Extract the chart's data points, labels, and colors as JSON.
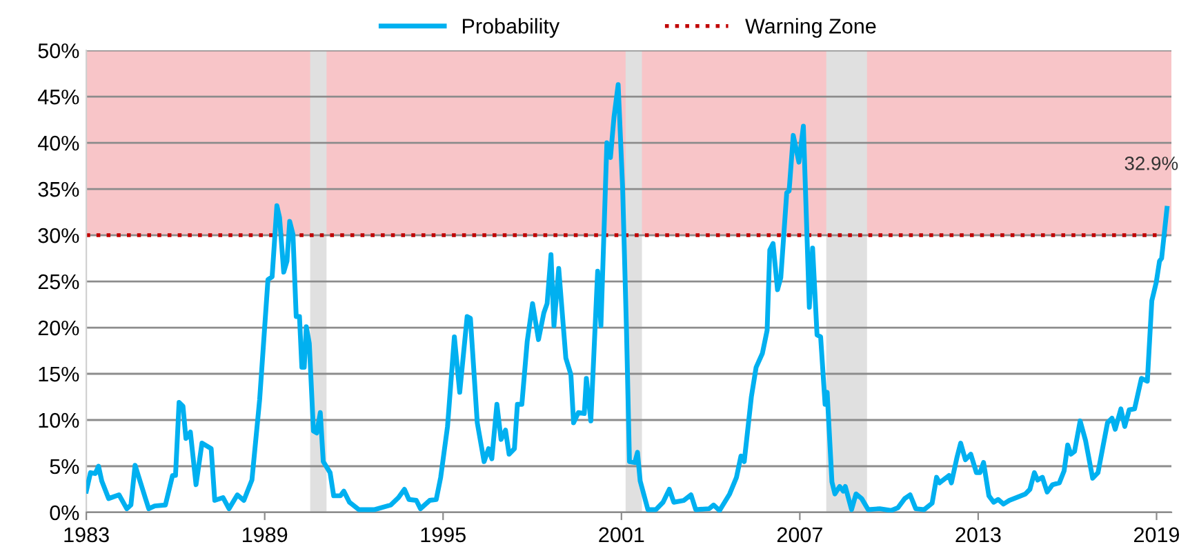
{
  "chart_data": {
    "type": "line",
    "x": [
      1983.0,
      1983.14,
      1983.3,
      1983.41,
      1983.52,
      1983.75,
      1984.1,
      1984.36,
      1984.5,
      1984.64,
      1985.0,
      1985.1,
      1985.3,
      1985.66,
      1985.9,
      1986.0,
      1986.12,
      1986.25,
      1986.35,
      1986.5,
      1986.69,
      1986.89,
      1987.2,
      1987.32,
      1987.6,
      1987.8,
      1988.08,
      1988.3,
      1988.57,
      1988.83,
      1989.11,
      1989.25,
      1989.41,
      1989.5,
      1989.64,
      1989.75,
      1989.84,
      1989.95,
      1990.06,
      1990.17,
      1990.25,
      1990.33,
      1990.4,
      1990.5,
      1990.64,
      1990.75,
      1990.87,
      1990.97,
      1991.2,
      1991.32,
      1991.55,
      1991.66,
      1991.85,
      1992.17,
      1992.7,
      1993.24,
      1993.5,
      1993.7,
      1993.85,
      1994.1,
      1994.24,
      1994.55,
      1994.77,
      1994.92,
      1995.15,
      1995.38,
      1995.56,
      1995.81,
      1995.92,
      1996.15,
      1996.38,
      1996.53,
      1996.64,
      1996.81,
      1996.95,
      1997.1,
      1997.22,
      1997.4,
      1997.5,
      1997.65,
      1997.83,
      1998.01,
      1998.21,
      1998.39,
      1998.5,
      1998.63,
      1998.73,
      1998.89,
      1999.13,
      1999.3,
      1999.39,
      1999.55,
      1999.75,
      1999.82,
      1999.97,
      2000.2,
      2000.31,
      2000.51,
      2000.63,
      2000.75,
      2000.89,
      2001.04,
      2001.17,
      2001.27,
      2001.45,
      2001.54,
      2001.63,
      2001.89,
      2002.16,
      2002.4,
      2002.61,
      2002.76,
      2003.1,
      2003.34,
      2003.5,
      2003.95,
      2004.1,
      2004.3,
      2004.64,
      2004.87,
      2005.02,
      2005.13,
      2005.37,
      2005.53,
      2005.74,
      2005.9,
      2005.99,
      2006.1,
      2006.25,
      2006.36,
      2006.56,
      2006.64,
      2006.78,
      2006.97,
      2007.12,
      2007.32,
      2007.43,
      2007.58,
      2007.7,
      2007.85,
      2007.92,
      2008.08,
      2008.18,
      2008.34,
      2008.46,
      2008.53,
      2008.74,
      2008.89,
      2009.08,
      2009.3,
      2009.69,
      2010.07,
      2010.3,
      2010.53,
      2010.71,
      2010.9,
      2011.18,
      2011.45,
      2011.6,
      2011.7,
      2012.02,
      2012.1,
      2012.29,
      2012.41,
      2012.57,
      2012.75,
      2012.94,
      2013.06,
      2013.18,
      2013.36,
      2013.52,
      2013.67,
      2013.85,
      2014.05,
      2014.36,
      2014.59,
      2014.74,
      2014.89,
      2015.0,
      2015.16,
      2015.32,
      2015.5,
      2015.73,
      2015.89,
      2016.01,
      2016.12,
      2016.24,
      2016.43,
      2016.61,
      2016.85,
      2017.03,
      2017.19,
      2017.35,
      2017.5,
      2017.61,
      2017.8,
      2017.93,
      2018.08,
      2018.26,
      2018.49,
      2018.69,
      2018.84,
      2018.99,
      2019.1,
      2019.17,
      2019.35
    ],
    "series": [
      {
        "name": "Probability",
        "color": "#00b0f0",
        "values": [
          2.3,
          4.3,
          4.2,
          5.0,
          3.4,
          1.5,
          1.9,
          0.4,
          0.8,
          5.1,
          1.4,
          0.4,
          0.7,
          0.8,
          4.0,
          4.0,
          11.9,
          11.5,
          8.0,
          8.7,
          3.0,
          7.5,
          6.9,
          1.3,
          1.6,
          0.4,
          1.9,
          1.3,
          3.5,
          12.2,
          25.2,
          25.5,
          33.2,
          31.9,
          26.0,
          27.2,
          31.5,
          30.1,
          21.2,
          21.2,
          15.7,
          15.7,
          20.1,
          18.3,
          8.8,
          8.6,
          10.8,
          5.5,
          4.3,
          1.8,
          1.8,
          2.3,
          1.1,
          0.3,
          0.3,
          0.8,
          1.6,
          2.5,
          1.4,
          1.3,
          0.4,
          1.3,
          1.4,
          3.8,
          9.3,
          19.0,
          13.0,
          21.2,
          21.0,
          9.7,
          5.5,
          6.9,
          5.8,
          11.7,
          7.9,
          8.9,
          6.3,
          6.9,
          11.7,
          11.7,
          18.5,
          22.6,
          18.7,
          21.6,
          22.6,
          27.9,
          20.2,
          26.4,
          16.7,
          14.9,
          9.7,
          10.8,
          10.7,
          14.5,
          9.9,
          26.1,
          20.2,
          40.0,
          38.4,
          42.8,
          46.3,
          35.1,
          19.7,
          5.5,
          5.4,
          6.5,
          3.4,
          0.3,
          0.3,
          1.1,
          2.5,
          1.1,
          1.3,
          1.9,
          0.3,
          0.4,
          0.8,
          0.2,
          2.0,
          3.8,
          6.1,
          5.5,
          12.5,
          15.7,
          17.2,
          19.7,
          28.4,
          29.1,
          24.1,
          25.4,
          34.6,
          34.8,
          40.8,
          37.9,
          41.8,
          22.2,
          28.6,
          19.2,
          19.0,
          11.7,
          13.0,
          3.3,
          2.0,
          2.8,
          2.3,
          2.8,
          0.3,
          2.0,
          1.5,
          0.3,
          0.4,
          0.2,
          0.5,
          1.5,
          1.9,
          0.4,
          0.3,
          1.0,
          3.8,
          3.2,
          4.0,
          3.2,
          6.0,
          7.5,
          5.7,
          6.3,
          4.3,
          4.3,
          5.4,
          1.8,
          1.1,
          1.4,
          0.9,
          1.3,
          1.7,
          2.0,
          2.5,
          4.3,
          3.5,
          3.8,
          2.2,
          3.0,
          3.2,
          4.5,
          7.3,
          6.3,
          6.6,
          9.9,
          7.8,
          3.7,
          4.3,
          7.0,
          9.7,
          10.2,
          9.0,
          11.2,
          9.3,
          11.1,
          11.2,
          14.5,
          14.2,
          22.9,
          24.9,
          27.2,
          27.5,
          32.9
        ]
      }
    ],
    "xlim": [
      1983,
      2019.5
    ],
    "xticks": [
      1983,
      1989,
      1995,
      2001,
      2007,
      2013,
      2019
    ],
    "ylim": [
      0,
      50
    ],
    "yticks": [
      {
        "value": 0,
        "label": "0%"
      },
      {
        "value": 5,
        "label": "5%"
      },
      {
        "value": 10,
        "label": "10%"
      },
      {
        "value": 15,
        "label": "15%"
      },
      {
        "value": 20,
        "label": "20%"
      },
      {
        "value": 25,
        "label": "25%"
      },
      {
        "value": 30,
        "label": "30%"
      },
      {
        "value": 35,
        "label": "35%"
      },
      {
        "value": 40,
        "label": "40%"
      },
      {
        "value": 45,
        "label": "45%"
      },
      {
        "value": 50,
        "label": "50%"
      }
    ],
    "ref_lines": [
      {
        "axis": "y",
        "value": 30,
        "label": "Warning Zone",
        "color": "#c00000",
        "line_style": "dotted"
      }
    ],
    "bands": [
      {
        "axis": "y",
        "from": 30,
        "to": 50,
        "color": "#f8c5c8"
      },
      {
        "axis": "x",
        "from": 1990.53,
        "to": 1991.08,
        "color": "#e0e0e0"
      },
      {
        "axis": "x",
        "from": 2001.14,
        "to": 2001.69,
        "color": "#e0e0e0"
      },
      {
        "axis": "x",
        "from": 2007.89,
        "to": 2009.26,
        "color": "#e0e0e0"
      }
    ],
    "annotations": [
      {
        "text": "32.9%",
        "x": 2019.35,
        "y": 32.9
      }
    ],
    "grid": "y",
    "legend": "top",
    "marker": "none",
    "line_style": "solid"
  }
}
